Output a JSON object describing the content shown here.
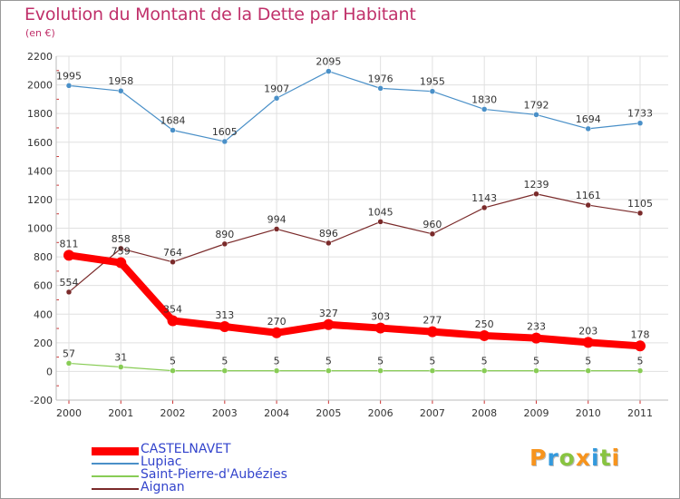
{
  "chart_data": {
    "type": "line",
    "title": "Evolution du Montant de la Dette par Habitant",
    "subtitle": "(en €)",
    "ylim": [
      -200,
      2200
    ],
    "yticks": [
      -200,
      0,
      200,
      400,
      600,
      800,
      1000,
      1200,
      1400,
      1600,
      1800,
      2000,
      2200
    ],
    "x": [
      "2000",
      "2001",
      "2002",
      "2003",
      "2004",
      "2005",
      "2006",
      "2007",
      "2008",
      "2009",
      "2010",
      "2011"
    ],
    "grid": true,
    "legend_position": "bottom-left",
    "series": [
      {
        "name": "CASTELNAVET",
        "color": "#ff0000",
        "values": [
          811,
          759,
          354,
          313,
          270,
          327,
          303,
          277,
          250,
          233,
          203,
          178
        ]
      },
      {
        "name": "Lupiac",
        "color": "#4a90c8",
        "values": [
          1995,
          1958,
          1684,
          1605,
          1907,
          2095,
          1976,
          1955,
          1830,
          1792,
          1694,
          1733
        ]
      },
      {
        "name": "Saint-Pierre-d'Aubézies",
        "color": "#88cc55",
        "values": [
          57,
          31,
          5,
          5,
          5,
          5,
          5,
          5,
          5,
          5,
          5,
          5
        ]
      },
      {
        "name": "Aignan",
        "color": "#7a2a2a",
        "values": [
          554,
          858,
          764,
          890,
          994,
          896,
          1045,
          960,
          1143,
          1239,
          1161,
          1105
        ]
      }
    ]
  },
  "logo": {
    "letters": [
      "P",
      "r",
      "o",
      "x",
      "i",
      "t",
      "i"
    ],
    "colors": [
      "#f7941d",
      "#3399dd",
      "#88c440",
      "#f7941d",
      "#3399dd",
      "#88c440",
      "#f7941d"
    ]
  }
}
